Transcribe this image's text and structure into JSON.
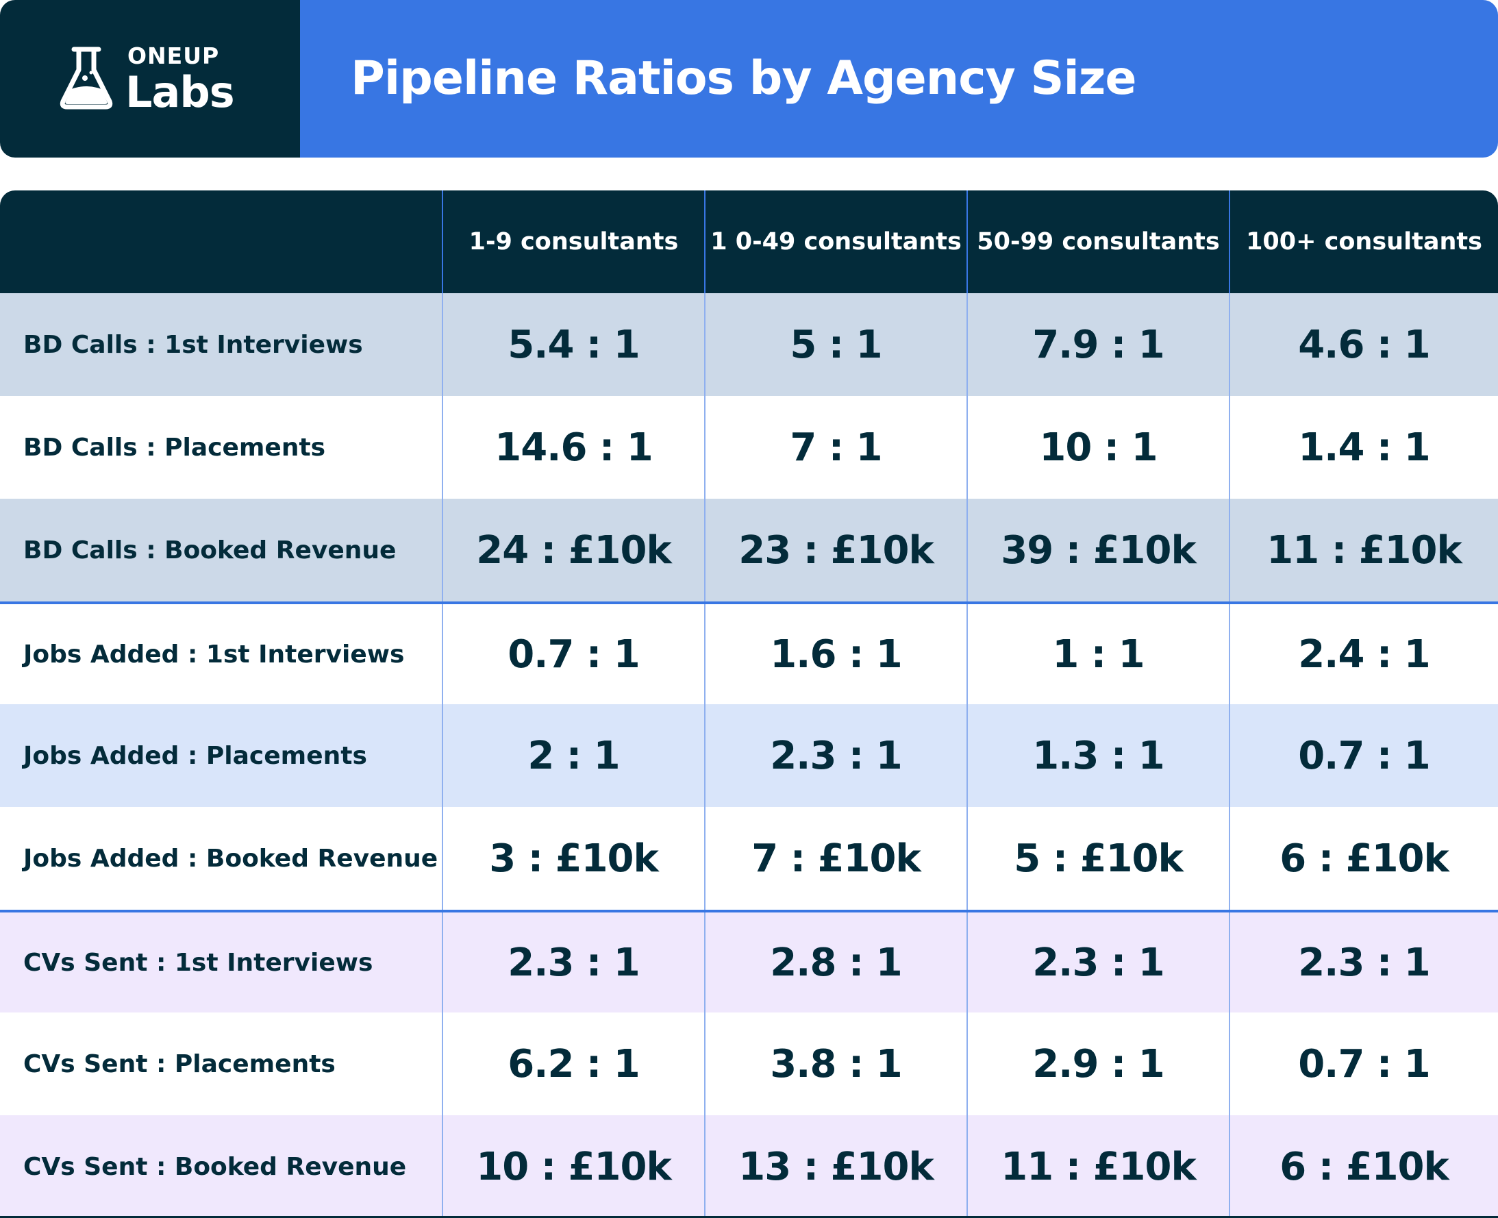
{
  "brand": {
    "top": "ONEUP",
    "main": "Labs",
    "icon": "flask-icon"
  },
  "title": "Pipeline Ratios by Agency Size",
  "columns": [
    "1-9 consultants",
    "1 0-49 consultants",
    "50-99 consultants",
    "100+ consultants"
  ],
  "rows": [
    {
      "label": "BD Calls : 1st Interviews",
      "values": [
        "5.4 : 1",
        "5 : 1",
        "7.9 : 1",
        "4.6 : 1"
      ]
    },
    {
      "label": "BD Calls : Placements",
      "values": [
        "14.6 : 1",
        "7 : 1",
        "10 : 1",
        "1.4 : 1"
      ]
    },
    {
      "label": "BD Calls : Booked Revenue",
      "values": [
        "24 : £10k",
        "23 : £10k",
        "39 : £10k",
        "11 : £10k"
      ]
    },
    {
      "label": "Jobs Added : 1st Interviews",
      "values": [
        "0.7 : 1",
        "1.6 : 1",
        "1 : 1",
        "2.4 : 1"
      ]
    },
    {
      "label": "Jobs Added : Placements",
      "values": [
        "2 : 1",
        "2.3 : 1",
        "1.3 : 1",
        "0.7 : 1"
      ]
    },
    {
      "label": "Jobs Added : Booked Revenue",
      "values": [
        "3 : £10k",
        "7 : £10k",
        "5 : £10k",
        "6 : £10k"
      ]
    },
    {
      "label": "CVs Sent : 1st Interviews",
      "values": [
        "2.3 : 1",
        "2.8 : 1",
        "2.3 : 1",
        "2.3 : 1"
      ]
    },
    {
      "label": "CVs Sent : Placements",
      "values": [
        "6.2 : 1",
        "3.8 : 1",
        "2.9 : 1",
        "0.7 : 1"
      ]
    },
    {
      "label": "CVs Sent : Booked Revenue",
      "values": [
        "10 : £10k",
        "13 : £10k",
        "11 : £10k",
        "6 : £10k"
      ]
    }
  ],
  "colors": {
    "dark": "#032b3a",
    "accent": "#3876e3",
    "row_slate": "#ccd9e8",
    "row_blue": "#d9e5fa",
    "row_lilac": "#f0e8fd"
  }
}
